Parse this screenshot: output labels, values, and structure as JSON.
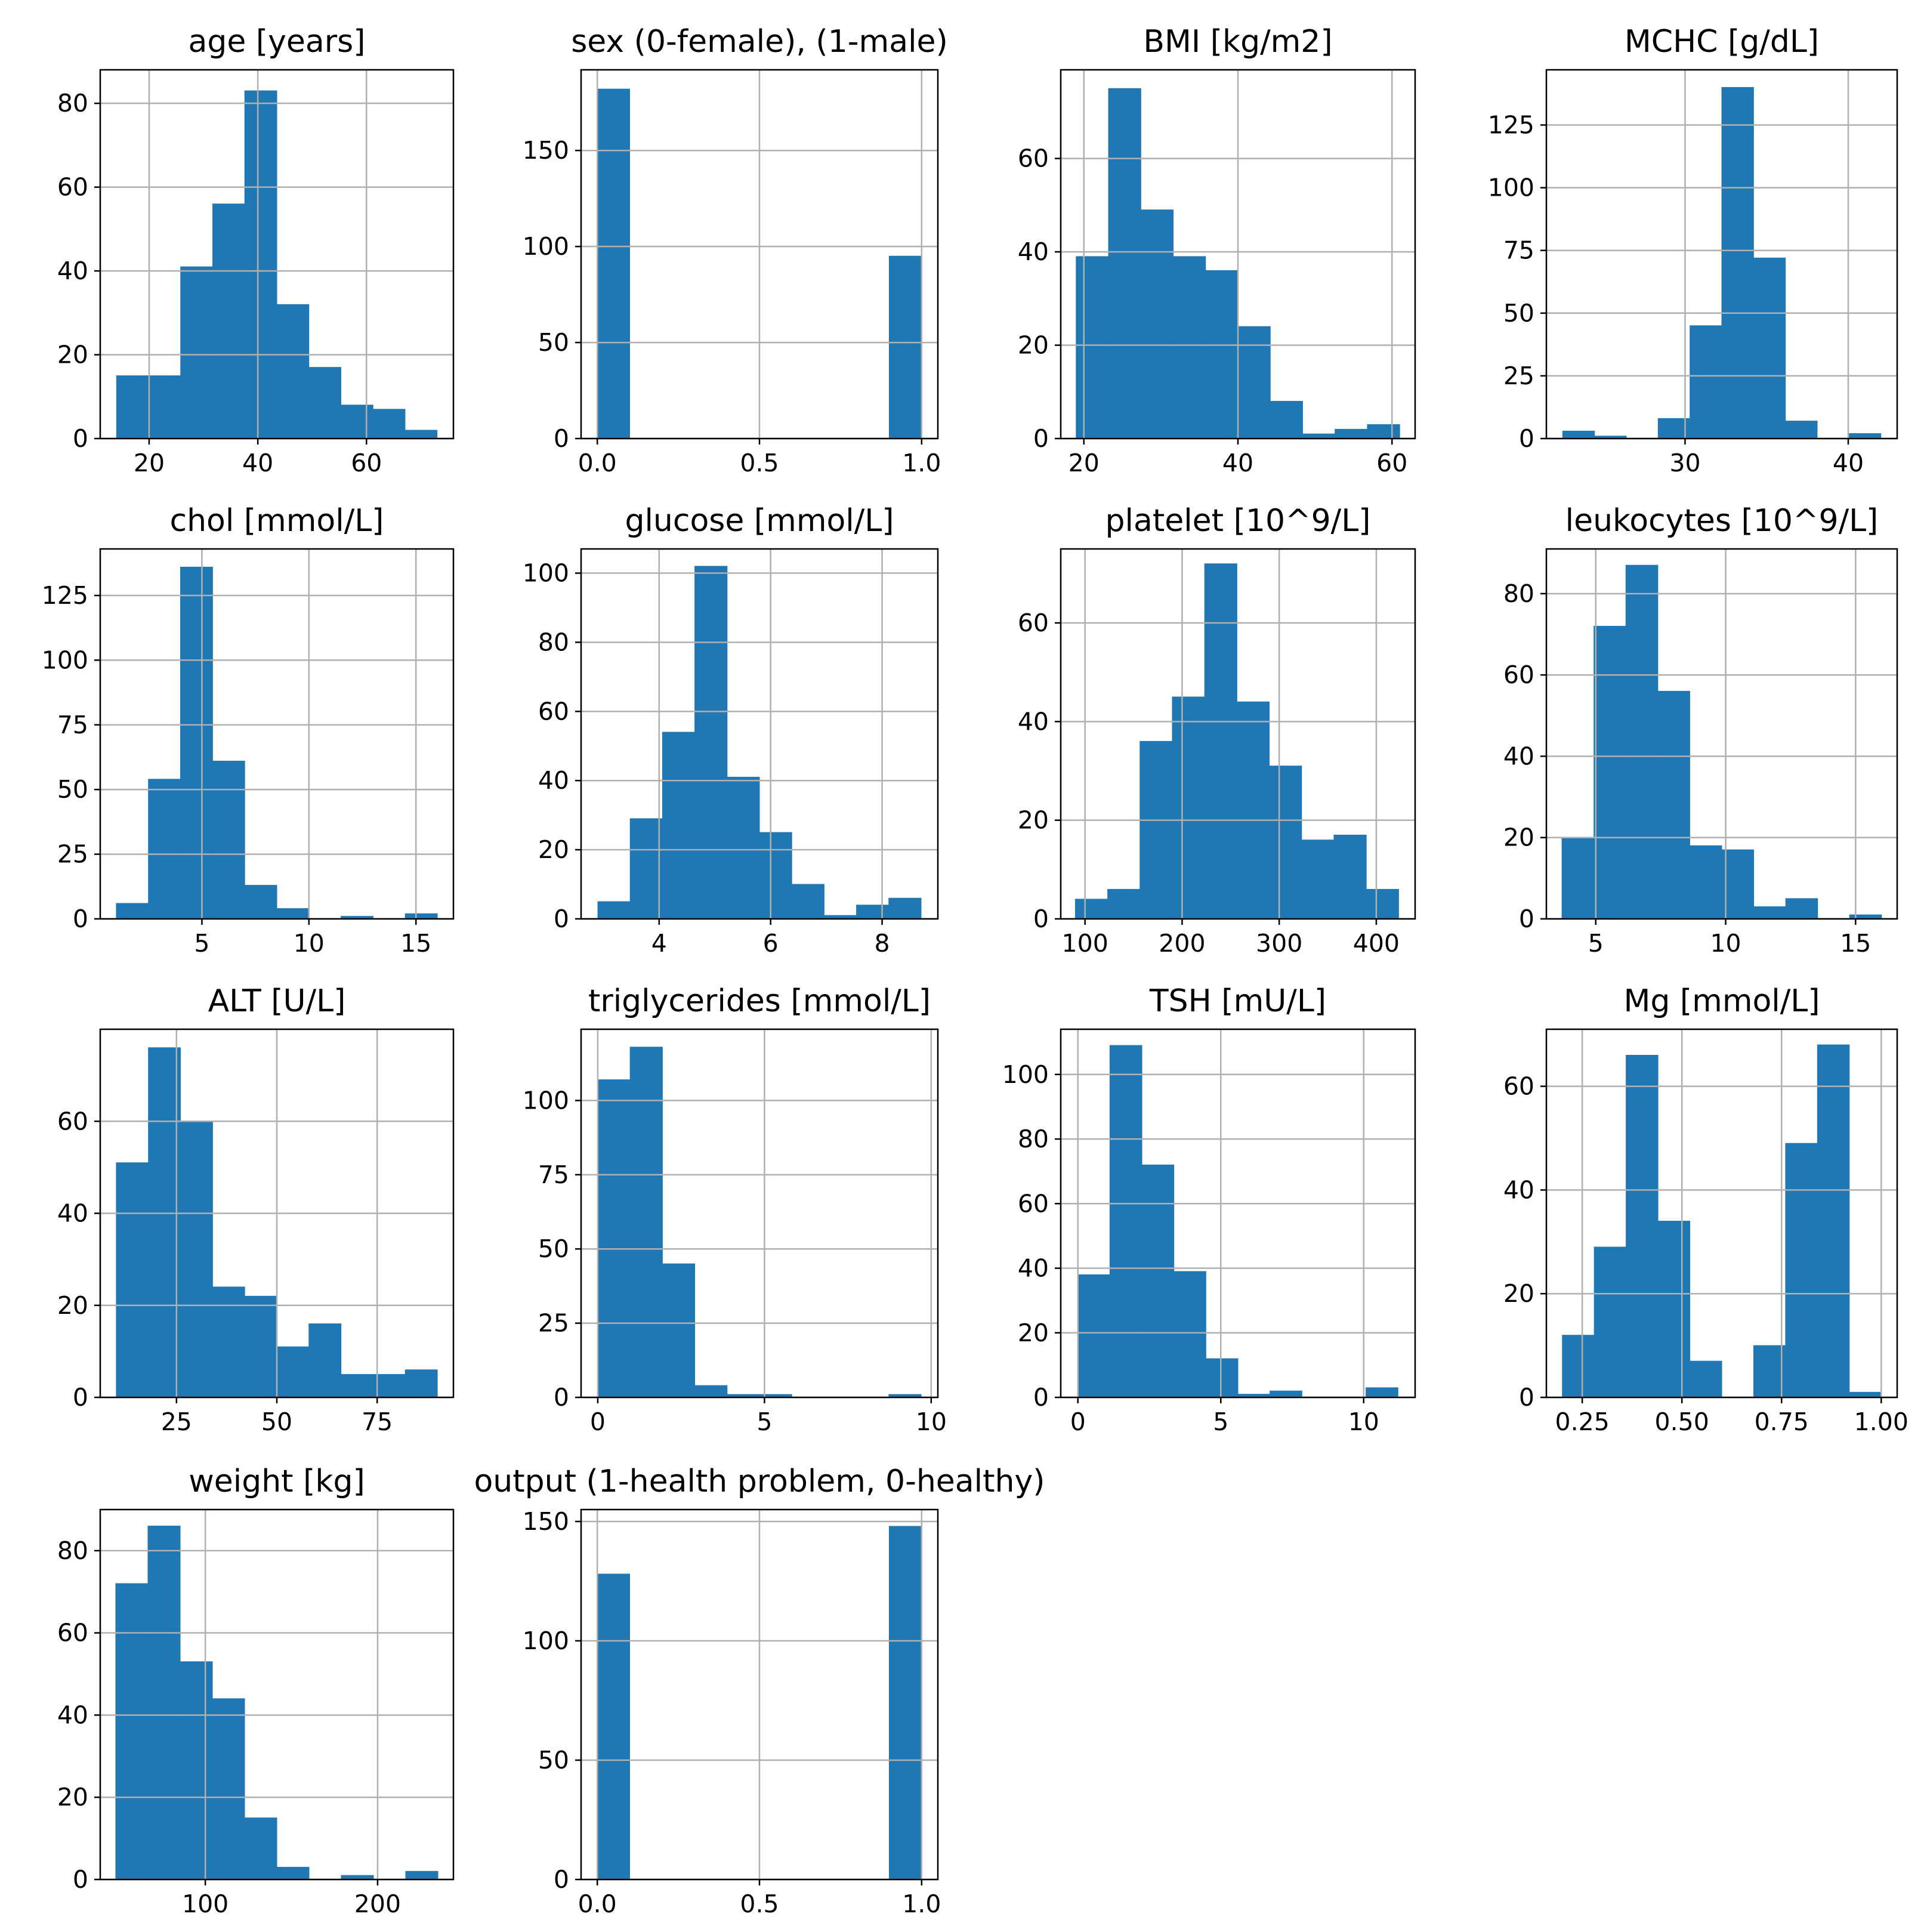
{
  "style": {
    "bar_color": "#1f77b4",
    "bar_edge": "#1f77b4",
    "grid": true
  },
  "chart_data": [
    {
      "type": "bar",
      "title": "age [years]",
      "bin_edges": [
        14,
        19.9,
        25.8,
        31.7,
        37.6,
        43.5,
        49.4,
        55.3,
        61.2,
        67.1,
        73
      ],
      "counts": [
        15,
        15,
        41,
        56,
        83,
        32,
        17,
        8,
        7,
        2
      ],
      "xlim": [
        11,
        76
      ],
      "ylim": [
        0,
        88
      ],
      "xticks": [
        20,
        40,
        60
      ],
      "xtick_labels": [
        "20",
        "40",
        "60"
      ],
      "yticks": [
        0,
        20,
        40,
        60,
        80
      ],
      "ytick_labels": [
        "0",
        "20",
        "40",
        "60",
        "80"
      ]
    },
    {
      "type": "bar",
      "title": "sex (0-female), (1-male)",
      "bin_edges": [
        0,
        0.1,
        0.2,
        0.3,
        0.4,
        0.5,
        0.6,
        0.7,
        0.8,
        0.9,
        1.0
      ],
      "counts": [
        182,
        0,
        0,
        0,
        0,
        0,
        0,
        0,
        0,
        95
      ],
      "xlim": [
        -0.05,
        1.05
      ],
      "ylim": [
        0,
        192
      ],
      "xticks": [
        0,
        0.5,
        1
      ],
      "xtick_labels": [
        "0.0",
        "0.5",
        "1.0"
      ],
      "yticks": [
        0,
        50,
        100,
        150
      ],
      "ytick_labels": [
        "0",
        "50",
        "100",
        "150"
      ]
    },
    {
      "type": "bar",
      "title": "BMI [kg/m2]",
      "bin_edges": [
        19,
        23.2,
        27.4,
        31.6,
        35.8,
        40,
        44.2,
        48.4,
        52.6,
        56.8,
        61
      ],
      "counts": [
        39,
        75,
        49,
        39,
        36,
        24,
        8,
        1,
        2,
        3
      ],
      "xlim": [
        17,
        63
      ],
      "ylim": [
        0,
        79
      ],
      "xticks": [
        20,
        40,
        60
      ],
      "xtick_labels": [
        "20",
        "40",
        "60"
      ],
      "yticks": [
        0,
        20,
        40,
        60
      ],
      "ytick_labels": [
        "0",
        "20",
        "40",
        "60"
      ]
    },
    {
      "type": "bar",
      "title": "MCHC [g/dL]",
      "bin_edges": [
        22.5,
        24.45,
        26.4,
        28.35,
        30.3,
        32.25,
        34.2,
        36.15,
        38.1,
        40.05,
        42
      ],
      "counts": [
        3,
        1,
        0,
        8,
        45,
        140,
        72,
        7,
        0,
        2
      ],
      "xlim": [
        21.5,
        43
      ],
      "ylim": [
        0,
        147
      ],
      "xticks": [
        30,
        40
      ],
      "xtick_labels": [
        "30",
        "40"
      ],
      "yticks": [
        0,
        25,
        50,
        75,
        100,
        125
      ],
      "ytick_labels": [
        "0",
        "25",
        "50",
        "75",
        "100",
        "125"
      ]
    },
    {
      "type": "bar",
      "title": "chol [mmol/L]",
      "bin_edges": [
        1,
        2.5,
        4,
        5.5,
        7,
        8.5,
        10,
        11.5,
        13,
        14.5,
        16
      ],
      "counts": [
        6,
        54,
        136,
        61,
        13,
        4,
        0,
        1,
        0,
        2
      ],
      "xlim": [
        0.25,
        16.75
      ],
      "ylim": [
        0,
        143
      ],
      "xticks": [
        5,
        10,
        15
      ],
      "xtick_labels": [
        "5",
        "10",
        "15"
      ],
      "yticks": [
        0,
        25,
        50,
        75,
        100,
        125
      ],
      "ytick_labels": [
        "0",
        "25",
        "50",
        "75",
        "100",
        "125"
      ]
    },
    {
      "type": "bar",
      "title": "glucose [mmol/L]",
      "bin_edges": [
        2.9,
        3.48,
        4.06,
        4.64,
        5.22,
        5.8,
        6.38,
        6.96,
        7.54,
        8.12,
        8.7
      ],
      "counts": [
        5,
        29,
        54,
        102,
        41,
        25,
        10,
        1,
        4,
        6
      ],
      "xlim": [
        2.6,
        9.0
      ],
      "ylim": [
        0,
        107
      ],
      "xticks": [
        4,
        6,
        8
      ],
      "xtick_labels": [
        "4",
        "6",
        "8"
      ],
      "yticks": [
        0,
        20,
        40,
        60,
        80,
        100
      ],
      "ytick_labels": [
        "0",
        "20",
        "40",
        "60",
        "80",
        "100"
      ]
    },
    {
      "type": "bar",
      "title": "platelet [10^9/L]",
      "bin_edges": [
        90,
        123.3,
        156.6,
        189.9,
        223.2,
        256.5,
        289.8,
        323.1,
        356.4,
        389.7,
        423
      ],
      "counts": [
        4,
        6,
        36,
        45,
        72,
        44,
        31,
        16,
        17,
        6
      ],
      "xlim": [
        75,
        440
      ],
      "ylim": [
        0,
        75
      ],
      "xticks": [
        100,
        200,
        300,
        400
      ],
      "xtick_labels": [
        "100",
        "200",
        "300",
        "400"
      ],
      "yticks": [
        0,
        20,
        40,
        60
      ],
      "ytick_labels": [
        "0",
        "20",
        "40",
        "60"
      ]
    },
    {
      "type": "bar",
      "title": "leukocytes [10^9/L]",
      "bin_edges": [
        3.7,
        4.93,
        6.16,
        7.39,
        8.62,
        9.85,
        11.08,
        12.31,
        13.54,
        14.77,
        16
      ],
      "counts": [
        20,
        72,
        87,
        56,
        18,
        17,
        3,
        5,
        0,
        1
      ],
      "xlim": [
        3.1,
        16.6
      ],
      "ylim": [
        0,
        91
      ],
      "xticks": [
        5,
        10,
        15
      ],
      "xtick_labels": [
        "5",
        "10",
        "15"
      ],
      "yticks": [
        0,
        20,
        40,
        60,
        80
      ],
      "ytick_labels": [
        "0",
        "20",
        "40",
        "60",
        "80"
      ]
    },
    {
      "type": "bar",
      "title": "ALT [U/L]",
      "bin_edges": [
        10,
        18,
        26,
        34,
        42,
        50,
        58,
        66,
        74,
        82,
        90
      ],
      "counts": [
        51,
        76,
        60,
        24,
        22,
        11,
        16,
        5,
        5,
        6
      ],
      "xlim": [
        6,
        94
      ],
      "ylim": [
        0,
        80
      ],
      "xticks": [
        25,
        50,
        75
      ],
      "xtick_labels": [
        "25",
        "50",
        "75"
      ],
      "yticks": [
        0,
        20,
        40,
        60
      ],
      "ytick_labels": [
        "0",
        "20",
        "40",
        "60"
      ]
    },
    {
      "type": "bar",
      "title": "triglycerides [mmol/L]",
      "bin_edges": [
        0,
        0.97,
        1.94,
        2.91,
        3.88,
        4.85,
        5.82,
        6.79,
        7.76,
        8.73,
        9.7
      ],
      "counts": [
        107,
        118,
        45,
        4,
        1,
        1,
        0,
        0,
        0,
        1
      ],
      "xlim": [
        -0.5,
        10.2
      ],
      "ylim": [
        0,
        124
      ],
      "xticks": [
        0,
        5,
        10
      ],
      "xtick_labels": [
        "0",
        "5",
        "10"
      ],
      "yticks": [
        0,
        25,
        50,
        75,
        100
      ],
      "ytick_labels": [
        "0",
        "25",
        "50",
        "75",
        "100"
      ]
    },
    {
      "type": "bar",
      "title": "TSH [mU/L]",
      "bin_edges": [
        0,
        1.12,
        2.24,
        3.36,
        4.48,
        5.6,
        6.72,
        7.84,
        8.96,
        10.08,
        11.2
      ],
      "counts": [
        38,
        109,
        72,
        39,
        12,
        1,
        2,
        0,
        0,
        3
      ],
      "xlim": [
        -0.6,
        11.8
      ],
      "ylim": [
        0,
        114
      ],
      "xticks": [
        0,
        5,
        10
      ],
      "xtick_labels": [
        "0",
        "5",
        "10"
      ],
      "yticks": [
        0,
        20,
        40,
        60,
        80,
        100
      ],
      "ytick_labels": [
        "0",
        "20",
        "40",
        "60",
        "80",
        "100"
      ]
    },
    {
      "type": "bar",
      "title": "Mg [mmol/L]",
      "bin_edges": [
        0.2,
        0.28,
        0.36,
        0.44,
        0.52,
        0.6,
        0.68,
        0.76,
        0.84,
        0.92,
        1.0
      ],
      "counts": [
        12,
        29,
        66,
        34,
        7,
        0,
        10,
        49,
        68,
        1
      ],
      "xlim": [
        0.16,
        1.04
      ],
      "ylim": [
        0,
        71
      ],
      "xticks": [
        0.25,
        0.5,
        0.75,
        1.0
      ],
      "xtick_labels": [
        "0.25",
        "0.50",
        "0.75",
        "1.00"
      ],
      "yticks": [
        0,
        20,
        40,
        60
      ],
      "ytick_labels": [
        "0",
        "20",
        "40",
        "60"
      ]
    },
    {
      "type": "bar",
      "title": "weight [kg]",
      "bin_edges": [
        48,
        66.7,
        85.4,
        104.1,
        122.8,
        141.5,
        160.2,
        178.9,
        197.6,
        216.3,
        235
      ],
      "counts": [
        72,
        86,
        53,
        44,
        15,
        3,
        0,
        1,
        0,
        2
      ],
      "xlim": [
        39,
        244
      ],
      "ylim": [
        0,
        90
      ],
      "xticks": [
        100,
        200
      ],
      "xtick_labels": [
        "100",
        "200"
      ],
      "yticks": [
        0,
        20,
        40,
        60,
        80
      ],
      "ytick_labels": [
        "0",
        "20",
        "40",
        "60",
        "80"
      ]
    },
    {
      "type": "bar",
      "title": "output (1-health problem, 0-healthy)",
      "bin_edges": [
        0,
        0.1,
        0.2,
        0.3,
        0.4,
        0.5,
        0.6,
        0.7,
        0.8,
        0.9,
        1.0
      ],
      "counts": [
        128,
        0,
        0,
        0,
        0,
        0,
        0,
        0,
        0,
        148
      ],
      "xlim": [
        -0.05,
        1.05
      ],
      "ylim": [
        0,
        155
      ],
      "xticks": [
        0,
        0.5,
        1
      ],
      "xtick_labels": [
        "0.0",
        "0.5",
        "1.0"
      ],
      "yticks": [
        0,
        50,
        100,
        150
      ],
      "ytick_labels": [
        "0",
        "50",
        "100",
        "150"
      ]
    }
  ]
}
